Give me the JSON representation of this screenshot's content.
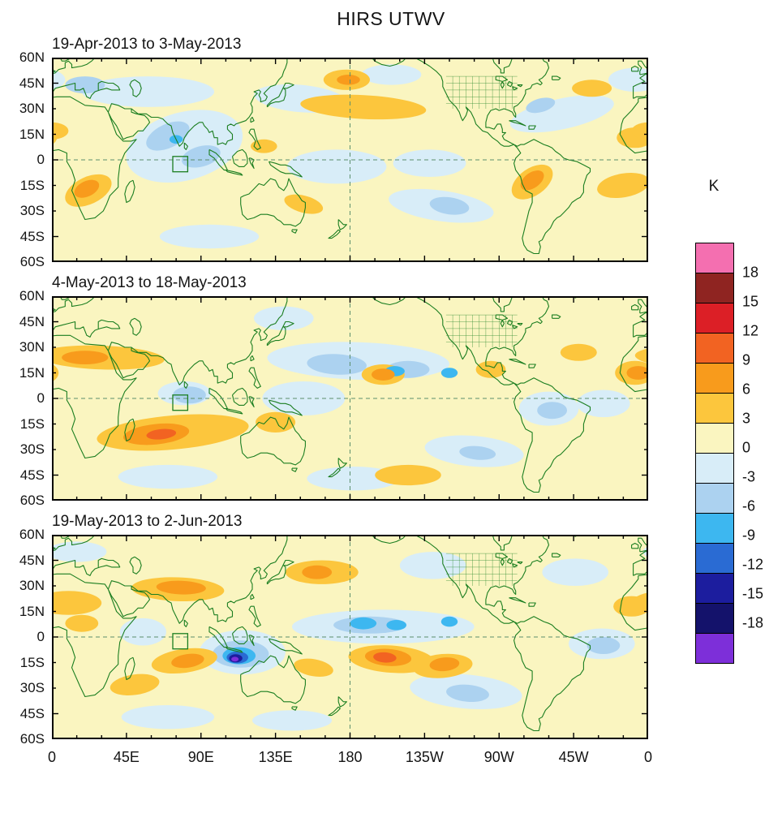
{
  "title": "HIRS UTWV",
  "colorbar": {
    "unit_label": "K",
    "boundary_labels": [
      "18",
      "15",
      "12",
      "9",
      "6",
      "3",
      "0",
      "-3",
      "-6",
      "-9",
      "-12",
      "-15",
      "-18"
    ],
    "colors_top_to_bottom": [
      "#F46FB0",
      "#8F2421",
      "#DC1F26",
      "#F26322",
      "#F89B1C",
      "#FCC63D",
      "#FAF5C0",
      "#D8EDF8",
      "#ACD2F0",
      "#3DB7F0",
      "#2A6BD3",
      "#1C1D9E",
      "#14126B",
      "#7D2FD9"
    ]
  },
  "axes": {
    "lat_tick_labels": [
      "60N",
      "45N",
      "30N",
      "15N",
      "0",
      "15S",
      "30S",
      "45S",
      "60S"
    ],
    "lon_tick_labels": [
      "0",
      "45E",
      "90E",
      "135E",
      "180",
      "135W",
      "90W",
      "45W",
      "0"
    ]
  },
  "map_style": {
    "coastline_color": "#1B7E20",
    "state_line_color": "#2A8A2E",
    "background_level_color": "#FAF5C0",
    "reference_line_color": "#5C8F6D",
    "frame_color": "#000000"
  },
  "chart_data": {
    "type": "heatmap",
    "title": "HIRS UTWV",
    "unit": "K",
    "contour_interval": 3,
    "contour_levels": [
      -18,
      -15,
      -12,
      -9,
      -6,
      -3,
      0,
      3,
      6,
      9,
      12,
      15,
      18
    ],
    "lat_range": [
      -60,
      60
    ],
    "lon_range": [
      0,
      360
    ],
    "legend_position": "right",
    "feature_format": "lon_deg,lat_deg,rx_deg,ry_deg,rotation_deg,anomaly_level_K",
    "region_marker": {
      "lon_min": 73,
      "lon_max": 82,
      "lat_min": -7,
      "lat_max": 2
    },
    "panels": [
      {
        "title": "19-Apr-2013 to 3-May-2013",
        "features": [
          [
            80,
            8,
            36,
            20,
            -15,
            -1.5
          ],
          [
            58,
            40,
            40,
            9,
            0,
            -1.5
          ],
          [
            150,
            36,
            28,
            8,
            5,
            -1.5
          ],
          [
            172,
            -4,
            30,
            10,
            0,
            -1.5
          ],
          [
            228,
            -2,
            22,
            8,
            0,
            -1.5
          ],
          [
            235,
            -27,
            32,
            9,
            8,
            -1.5
          ],
          [
            308,
            27,
            32,
            9,
            -12,
            -1.5
          ],
          [
            352,
            47,
            16,
            7,
            0,
            -1.5
          ],
          [
            95,
            -45,
            30,
            7,
            0,
            -1.5
          ],
          [
            205,
            50,
            18,
            6,
            0,
            -1.5
          ],
          [
            70,
            14,
            14,
            7,
            -25,
            -4.5
          ],
          [
            90,
            2,
            12,
            6,
            -15,
            -4.5
          ],
          [
            20,
            44,
            12,
            5,
            0,
            -4.5
          ],
          [
            240,
            -27,
            12,
            5,
            8,
            -4.5
          ],
          [
            295,
            32,
            9,
            4,
            -15,
            -4.5
          ],
          [
            75,
            12,
            4,
            2.5,
            0,
            -7.5
          ],
          [
            22,
            -18,
            15,
            8,
            -25,
            4.5
          ],
          [
            290,
            -13,
            14,
            8,
            -35,
            4.5
          ],
          [
            188,
            31,
            38,
            7,
            3,
            4.5
          ],
          [
            178,
            47,
            14,
            6,
            0,
            4.5
          ],
          [
            352,
            13,
            11,
            6,
            0,
            4.5
          ],
          [
            326,
            42,
            12,
            5,
            0,
            4.5
          ],
          [
            345,
            -15,
            16,
            7,
            -10,
            4.5
          ],
          [
            152,
            -26,
            12,
            5,
            15,
            4.5
          ],
          [
            128,
            8,
            8,
            4,
            0,
            4.5
          ],
          [
            0,
            17,
            10,
            5,
            0,
            4.5
          ],
          [
            21,
            -17,
            8,
            4.5,
            -25,
            7.5
          ],
          [
            290,
            -12,
            8,
            4.5,
            -35,
            7.5
          ],
          [
            179,
            47,
            7,
            3,
            0,
            7.5
          ]
        ]
      },
      {
        "title": "4-May-2013 to 18-May-2013",
        "features": [
          [
            185,
            22,
            55,
            11,
            2,
            -1.5
          ],
          [
            152,
            0,
            25,
            10,
            0,
            -1.5
          ],
          [
            300,
            -6,
            18,
            10,
            0,
            -1.5
          ],
          [
            255,
            -31,
            30,
            9,
            5,
            -1.5
          ],
          [
            70,
            -46,
            30,
            7,
            0,
            -1.5
          ],
          [
            182,
            -47,
            28,
            7,
            0,
            -1.5
          ],
          [
            140,
            47,
            18,
            7,
            0,
            -1.5
          ],
          [
            333,
            -3,
            16,
            8,
            0,
            -1.5
          ],
          [
            80,
            3,
            16,
            7,
            0,
            -1.5
          ],
          [
            172,
            20,
            18,
            6,
            3,
            -4.5
          ],
          [
            215,
            17,
            13,
            5,
            0,
            -4.5
          ],
          [
            83,
            2,
            10,
            5,
            0,
            -4.5
          ],
          [
            302,
            -7,
            9,
            5,
            0,
            -4.5
          ],
          [
            257,
            -32,
            11,
            4,
            5,
            -4.5
          ],
          [
            207,
            16,
            6,
            3,
            0,
            -7.5
          ],
          [
            240,
            15,
            5,
            3,
            0,
            -7.5
          ],
          [
            73,
            -20,
            46,
            10,
            -5,
            4.5
          ],
          [
            30,
            24,
            38,
            7,
            2,
            4.5
          ],
          [
            200,
            14,
            13,
            6,
            0,
            4.5
          ],
          [
            352,
            15,
            12,
            7,
            0,
            4.5
          ],
          [
            265,
            17,
            9,
            5,
            0,
            4.5
          ],
          [
            135,
            -14,
            12,
            6,
            0,
            4.5
          ],
          [
            215,
            -45,
            20,
            6,
            0,
            4.5
          ],
          [
            318,
            27,
            11,
            5,
            0,
            4.5
          ],
          [
            63,
            -21,
            20,
            6,
            -6,
            7.5
          ],
          [
            20,
            24,
            14,
            4,
            0,
            7.5
          ],
          [
            200,
            14,
            7,
            3.5,
            0,
            7.5
          ],
          [
            354,
            15,
            7,
            4,
            0,
            7.5
          ],
          [
            66,
            -21,
            9,
            3,
            -6,
            10.5
          ]
        ]
      },
      {
        "title": "19-May-2013 to 2-Jun-2013",
        "features": [
          [
            200,
            6,
            55,
            10,
            0,
            -1.5
          ],
          [
            115,
            -9,
            26,
            13,
            0,
            -1.5
          ],
          [
            250,
            -32,
            34,
            10,
            5,
            -1.5
          ],
          [
            332,
            -4,
            20,
            9,
            0,
            -1.5
          ],
          [
            316,
            38,
            20,
            8,
            0,
            -1.5
          ],
          [
            230,
            42,
            20,
            8,
            0,
            -1.5
          ],
          [
            15,
            50,
            18,
            6,
            0,
            -1.5
          ],
          [
            70,
            -47,
            28,
            7,
            0,
            -1.5
          ],
          [
            145,
            -49,
            24,
            6,
            0,
            -1.5
          ],
          [
            55,
            3,
            14,
            8,
            0,
            -1.5
          ],
          [
            114,
            -10,
            17,
            8,
            0,
            -4.5
          ],
          [
            192,
            7,
            22,
            5,
            0,
            -4.5
          ],
          [
            251,
            -33,
            13,
            5,
            5,
            -4.5
          ],
          [
            333,
            -5,
            10,
            5,
            0,
            -4.5
          ],
          [
            113,
            -11,
            10,
            5,
            0,
            -7.5
          ],
          [
            188,
            8,
            8,
            3.5,
            0,
            -7.5
          ],
          [
            208,
            7,
            6,
            3,
            0,
            -7.5
          ],
          [
            240,
            9,
            5,
            3,
            0,
            -7.5
          ],
          [
            112,
            -12,
            6.5,
            3.5,
            0,
            -10.5
          ],
          [
            111,
            -12.5,
            4,
            2.4,
            0,
            -13.5
          ],
          [
            110.5,
            -13,
            2.2,
            1.4,
            0,
            -19
          ],
          [
            76,
            28,
            28,
            7,
            2,
            4.5
          ],
          [
            10,
            20,
            20,
            7,
            0,
            4.5
          ],
          [
            350,
            18,
            11,
            6,
            0,
            4.5
          ],
          [
            80,
            -14,
            20,
            7,
            -8,
            4.5
          ],
          [
            205,
            -13,
            26,
            8,
            4,
            4.5
          ],
          [
            236,
            -17,
            18,
            7,
            -5,
            4.5
          ],
          [
            163,
            38,
            22,
            7,
            0,
            4.5
          ],
          [
            158,
            -18,
            12,
            5,
            10,
            4.5
          ],
          [
            50,
            -28,
            15,
            6,
            -8,
            4.5
          ],
          [
            18,
            8,
            10,
            5,
            0,
            4.5
          ],
          [
            78,
            29,
            15,
            4,
            2,
            7.5
          ],
          [
            82,
            -14,
            10,
            4,
            -8,
            7.5
          ],
          [
            203,
            -12,
            14,
            5,
            4,
            7.5
          ],
          [
            237,
            -16,
            9,
            4,
            -5,
            7.5
          ],
          [
            160,
            38,
            9,
            4,
            0,
            7.5
          ],
          [
            201,
            -12,
            7,
            3,
            4,
            10.5
          ]
        ]
      }
    ]
  }
}
